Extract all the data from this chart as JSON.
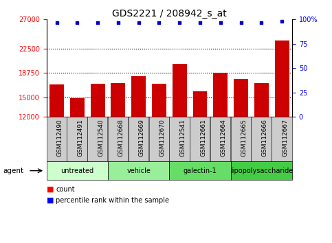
{
  "title": "GDS2221 / 208942_s_at",
  "samples": [
    "GSM112490",
    "GSM112491",
    "GSM112540",
    "GSM112668",
    "GSM112669",
    "GSM112670",
    "GSM112541",
    "GSM112661",
    "GSM112664",
    "GSM112665",
    "GSM112666",
    "GSM112667"
  ],
  "counts": [
    17000,
    14900,
    17100,
    17200,
    18200,
    17100,
    20200,
    15900,
    18800,
    17800,
    17200,
    23700
  ],
  "percentile_ranks": [
    97,
    97,
    97,
    97,
    97,
    97,
    97,
    97,
    97,
    97,
    97,
    98
  ],
  "groups": [
    {
      "label": "untreated",
      "indices": [
        0,
        1,
        2
      ],
      "color": "#ccffcc"
    },
    {
      "label": "vehicle",
      "indices": [
        3,
        4,
        5
      ],
      "color": "#99ee99"
    },
    {
      "label": "galectin-1",
      "indices": [
        6,
        7,
        8
      ],
      "color": "#66dd66"
    },
    {
      "label": "lipopolysaccharide",
      "indices": [
        9,
        10,
        11
      ],
      "color": "#44cc44"
    }
  ],
  "ylim_left": [
    12000,
    27000
  ],
  "yticks_left": [
    12000,
    15000,
    18750,
    22500,
    27000
  ],
  "ylim_right": [
    0,
    100
  ],
  "yticks_right": [
    0,
    25,
    50,
    75,
    100
  ],
  "bar_color": "#cc0000",
  "dot_color": "#0000cc",
  "bar_width": 0.7,
  "background_color": "#ffffff",
  "sample_box_color": "#cccccc",
  "agent_label": "agent",
  "legend_count_label": "count",
  "legend_percentile_label": "percentile rank within the sample",
  "title_fontsize": 10,
  "tick_fontsize": 7,
  "group_label_fontsize": 7,
  "sample_fontsize": 6.5
}
